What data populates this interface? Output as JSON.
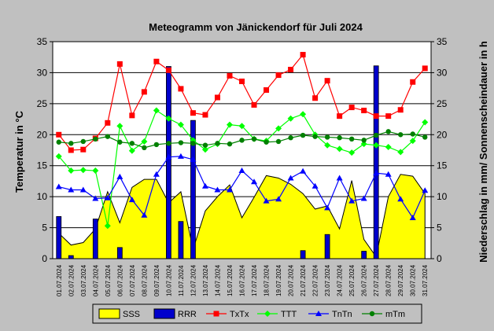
{
  "chart_data": {
    "type": "line",
    "title": "Meteogramm von Jänickendorf für Juli 2024",
    "ylabel": "Temperatur in °C",
    "y2label": "Niederschlag in mm/ Sonnenscheindauer in h",
    "ylim": [
      0,
      35
    ],
    "y2lim": [
      0,
      35
    ],
    "yticks": [
      "0",
      "5",
      "10",
      "15",
      "20",
      "25",
      "30",
      "35"
    ],
    "grid": true,
    "legend_position": "bottom",
    "categories": [
      "01.07.2024",
      "02.07.2024",
      "03.07.2024",
      "04.07.2024",
      "05.07.2024",
      "06.07.2024",
      "07.07.2024",
      "08.07.2024",
      "09.07.2024",
      "10.07.2024",
      "11.07.2024",
      "12.07.2024",
      "13.07.2024",
      "14.07.2024",
      "15.07.2024",
      "16.07.2024",
      "17.07.2024",
      "18.07.2024",
      "19.07.2024",
      "20.07.2024",
      "21.07.2024",
      "22.07.2024",
      "23.07.2024",
      "24.07.2024",
      "25.07.2024",
      "26.07.2024",
      "27.07.2024",
      "28.07.2024",
      "29.07.2024",
      "30.07.2024",
      "31.07.2024"
    ],
    "series": [
      {
        "name": "SSS",
        "kind": "area",
        "axis": "right",
        "color": "#ffff00",
        "values": [
          4.1,
          2.2,
          2.6,
          4.8,
          10.8,
          5.8,
          11.5,
          12.8,
          12.8,
          9.0,
          10.8,
          1.5,
          7.7,
          10.0,
          11.9,
          6.6,
          9.9,
          13.4,
          13.0,
          12.0,
          10.5,
          8.0,
          8.5,
          4.8,
          12.6,
          3.1,
          0.3,
          10.0,
          13.6,
          13.3,
          10.5
        ]
      },
      {
        "name": "RRR",
        "kind": "bar",
        "axis": "right",
        "color": "#0000cc",
        "values": [
          6.8,
          0.5,
          0,
          6.4,
          0,
          1.8,
          0,
          0,
          0,
          31.0,
          6.0,
          22.3,
          0,
          0,
          0,
          0,
          0,
          0,
          0,
          0,
          1.3,
          0,
          3.9,
          0,
          0,
          1.2,
          31.1,
          0,
          0,
          0,
          0
        ]
      },
      {
        "name": "TxTx",
        "kind": "line",
        "axis": "left",
        "color": "#ff0000",
        "marker": "square",
        "values": [
          20.0,
          17.5,
          17.6,
          19.4,
          21.9,
          31.4,
          23.1,
          26.9,
          31.8,
          30.4,
          27.4,
          23.5,
          23.2,
          26.0,
          29.5,
          28.6,
          24.8,
          27.2,
          29.6,
          30.5,
          32.9,
          25.9,
          28.7,
          23.0,
          24.4,
          23.9,
          23.0,
          23.0,
          24.0,
          28.5,
          30.7
        ]
      },
      {
        "name": "TTT",
        "kind": "line",
        "axis": "left",
        "color": "#00ff00",
        "marker": "diamond",
        "values": [
          16.5,
          14.2,
          14.3,
          14.2,
          5.3,
          21.4,
          17.4,
          18.9,
          23.9,
          22.6,
          21.6,
          19.1,
          17.6,
          18.5,
          21.6,
          21.4,
          19.3,
          19.0,
          21.0,
          22.6,
          23.3,
          20.0,
          18.3,
          17.7,
          17.1,
          18.5,
          18.3,
          18.0,
          17.2,
          19.0,
          22.0
        ]
      },
      {
        "name": "TnTn",
        "kind": "line",
        "axis": "left",
        "color": "#0000ff",
        "marker": "triangle",
        "values": [
          11.6,
          11.1,
          11.1,
          9.7,
          9.8,
          13.2,
          9.5,
          7.0,
          13.6,
          16.4,
          16.5,
          16.0,
          11.7,
          11.1,
          11.1,
          14.2,
          12.4,
          9.3,
          9.6,
          13.0,
          14.1,
          11.7,
          8.2,
          13.0,
          9.3,
          9.7,
          13.8,
          13.6,
          9.6,
          6.6,
          11.0
        ]
      },
      {
        "name": "mTm",
        "kind": "line",
        "axis": "left",
        "color": "#008000",
        "marker": "circle",
        "values": [
          18.8,
          18.6,
          18.9,
          19.3,
          19.7,
          18.8,
          18.6,
          17.9,
          18.4,
          18.6,
          18.7,
          18.6,
          18.3,
          18.6,
          18.5,
          19.1,
          19.3,
          18.8,
          18.9,
          19.5,
          19.9,
          19.7,
          19.6,
          19.5,
          19.3,
          19.1,
          19.9,
          20.5,
          20.0,
          20.1,
          19.6
        ]
      }
    ],
    "legend_order": [
      "SSS",
      "RRR",
      "TxTx",
      "TTT",
      "TnTn",
      "mTm"
    ]
  }
}
